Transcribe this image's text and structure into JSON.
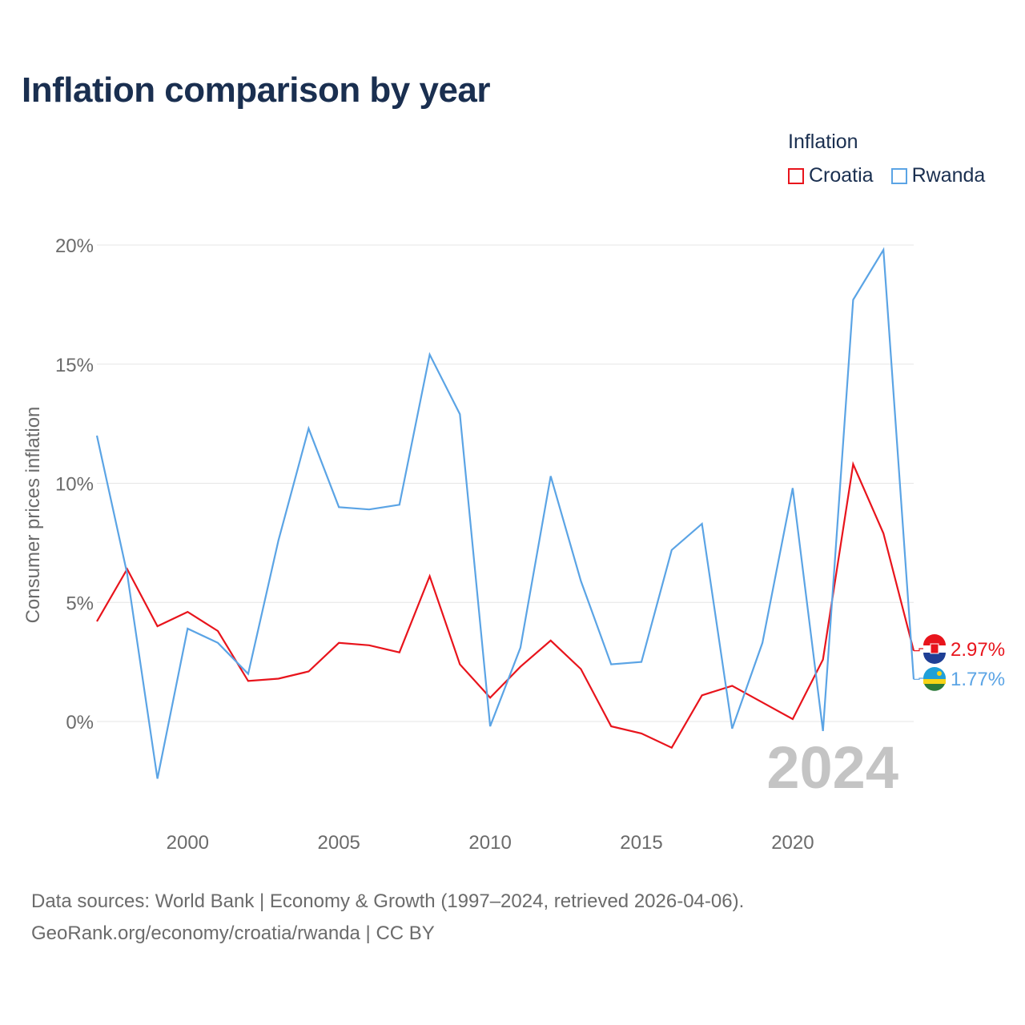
{
  "title": "Inflation comparison by year",
  "legend_title": "Inflation",
  "colors": {
    "croatia": "#e8141c",
    "rwanda": "#5ba4e5",
    "grid": "#e6e6e6",
    "tick": "#6b6b6b",
    "year": "#c4c4c4"
  },
  "chart_data": {
    "type": "line",
    "title": "Inflation comparison by year",
    "xlabel": "",
    "ylabel": "Consumer prices inflation",
    "x": [
      1997,
      1998,
      1999,
      2000,
      2001,
      2002,
      2003,
      2004,
      2005,
      2006,
      2007,
      2008,
      2009,
      2010,
      2011,
      2012,
      2013,
      2014,
      2015,
      2016,
      2017,
      2018,
      2019,
      2020,
      2021,
      2022,
      2023,
      2024
    ],
    "xlim": [
      1997,
      2024
    ],
    "ylim": [
      -3.7,
      20
    ],
    "xticks": [
      2000,
      2005,
      2010,
      2015,
      2020
    ],
    "yticks": [
      0,
      5,
      10,
      15,
      20
    ],
    "ytick_labels": [
      "0%",
      "5%",
      "10%",
      "15%",
      "20%"
    ],
    "series": [
      {
        "name": "Croatia",
        "color": "#e8141c",
        "end_label": "2.97%",
        "values": [
          4.2,
          6.4,
          4.0,
          4.6,
          3.8,
          1.7,
          1.8,
          2.1,
          3.3,
          3.2,
          2.9,
          6.1,
          2.4,
          1.0,
          2.3,
          3.4,
          2.2,
          -0.2,
          -0.5,
          -1.1,
          1.1,
          1.5,
          0.8,
          0.1,
          2.6,
          10.8,
          7.9,
          2.97
        ]
      },
      {
        "name": "Rwanda",
        "color": "#5ba4e5",
        "end_label": "1.77%",
        "values": [
          12.0,
          6.2,
          -2.4,
          3.9,
          3.3,
          2.0,
          7.6,
          12.3,
          9.0,
          8.9,
          9.1,
          15.4,
          12.9,
          -0.2,
          3.1,
          10.3,
          5.9,
          2.4,
          2.5,
          7.2,
          8.3,
          -0.3,
          3.3,
          9.8,
          -0.4,
          17.7,
          19.8,
          1.77
        ]
      }
    ],
    "annotation": "2024",
    "legend_position": "top-right"
  },
  "footer": {
    "line1": "Data sources: World Bank | Economy & Growth (1997–2024, retrieved 2026-04-06).",
    "line2": "GeoRank.org/economy/croatia/rwanda | CC BY"
  }
}
